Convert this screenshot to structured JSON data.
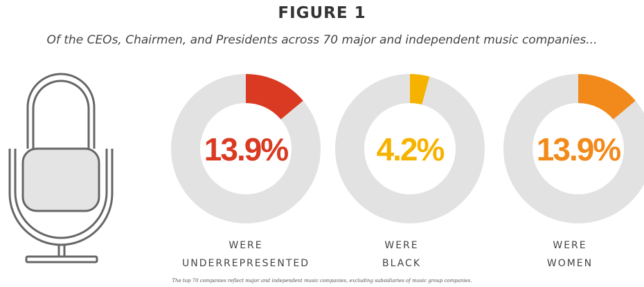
{
  "figure": {
    "title": "FIGURE 1",
    "subtitle": "Of the CEOs, Chairmen, and Presidents across 70 major and independent music companies...",
    "footnote": "The top 70 companies reflect major and independent music companies, excluding subsidiaries of music group companies."
  },
  "illustration": {
    "icon": "microphone-icon"
  },
  "colors": {
    "track": "#e2e2e2",
    "underrepresented": "#d93a21",
    "black": "#f5b300",
    "women": "#f28a1b"
  },
  "chart_data": {
    "type": "donut",
    "series": [
      {
        "label_line1": "WERE",
        "label_line2": "UNDERREPRESENTED",
        "value": 13.9,
        "display": "13.9%",
        "color": "#d93a21"
      },
      {
        "label_line1": "WERE",
        "label_line2": "BLACK",
        "value": 4.2,
        "display": "4.2%",
        "color": "#f5b300"
      },
      {
        "label_line1": "WERE",
        "label_line2": "WOMEN",
        "value": 13.9,
        "display": "13.9%",
        "color": "#f28a1b"
      }
    ],
    "max": 100
  }
}
